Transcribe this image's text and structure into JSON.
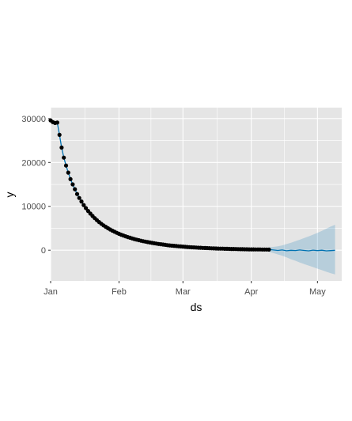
{
  "chart_data": {
    "type": "line",
    "title": "",
    "xlabel": "ds",
    "ylabel": "y",
    "grid": true,
    "legend": "none",
    "colors": {
      "panel": "#e5e5e5",
      "grid": "#ffffff",
      "points": "#000000",
      "forecast_line": "#0072b2",
      "interval": "#0072b2"
    },
    "x_axis": {
      "type": "date",
      "range": [
        "2020-01-01",
        "2020-05-12"
      ],
      "ticks": [
        {
          "date": "2020-01-01",
          "label": "Jan"
        },
        {
          "date": "2020-02-01",
          "label": "Feb"
        },
        {
          "date": "2020-03-01",
          "label": "Mar"
        },
        {
          "date": "2020-04-01",
          "label": "Apr"
        },
        {
          "date": "2020-05-01",
          "label": "May"
        }
      ]
    },
    "y_axis": {
      "range": [
        -7000,
        32500
      ],
      "ticks": [
        0,
        10000,
        20000,
        30000
      ],
      "tick_labels": [
        "0",
        "10000",
        "20000",
        "30000"
      ]
    },
    "observed": {
      "x": [
        "2020-01-01",
        "2020-01-02",
        "2020-01-03",
        "2020-01-04",
        "2020-01-05",
        "2020-01-06",
        "2020-01-07",
        "2020-01-08",
        "2020-01-09",
        "2020-01-10",
        "2020-01-11",
        "2020-01-12",
        "2020-01-13",
        "2020-01-14",
        "2020-01-15",
        "2020-01-16",
        "2020-01-17",
        "2020-01-18",
        "2020-01-19",
        "2020-01-20",
        "2020-01-21",
        "2020-01-22",
        "2020-01-23",
        "2020-01-24",
        "2020-01-25",
        "2020-01-26",
        "2020-01-27",
        "2020-01-28",
        "2020-01-29",
        "2020-01-30",
        "2020-01-31",
        "2020-02-01",
        "2020-02-02",
        "2020-02-03",
        "2020-02-04",
        "2020-02-05",
        "2020-02-06",
        "2020-02-07",
        "2020-02-08",
        "2020-02-09",
        "2020-02-10",
        "2020-02-11",
        "2020-02-12",
        "2020-02-13",
        "2020-02-14",
        "2020-02-15",
        "2020-02-16",
        "2020-02-17",
        "2020-02-18",
        "2020-02-19",
        "2020-02-20",
        "2020-02-21",
        "2020-02-22",
        "2020-02-23",
        "2020-02-24",
        "2020-02-25",
        "2020-02-26",
        "2020-02-27",
        "2020-02-28",
        "2020-02-29",
        "2020-03-01",
        "2020-03-02",
        "2020-03-03",
        "2020-03-04",
        "2020-03-05",
        "2020-03-06",
        "2020-03-07",
        "2020-03-08",
        "2020-03-09",
        "2020-03-10",
        "2020-03-11",
        "2020-03-12",
        "2020-03-13",
        "2020-03-14",
        "2020-03-15",
        "2020-03-16",
        "2020-03-17",
        "2020-03-18",
        "2020-03-19",
        "2020-03-20",
        "2020-03-21",
        "2020-03-22",
        "2020-03-23",
        "2020-03-24",
        "2020-03-25",
        "2020-03-26",
        "2020-03-27",
        "2020-03-28",
        "2020-03-29",
        "2020-03-30",
        "2020-03-31",
        "2020-04-01",
        "2020-04-02",
        "2020-04-03",
        "2020-04-04",
        "2020-04-05",
        "2020-04-06",
        "2020-04-07",
        "2020-04-08",
        "2020-04-09"
      ],
      "y": [
        29600,
        29200,
        29000,
        29100,
        26300,
        23400,
        21100,
        19300,
        17700,
        16200,
        15000,
        13900,
        12800,
        11900,
        11100,
        10300,
        9600,
        8950,
        8350,
        7800,
        7300,
        6850,
        6420,
        6030,
        5670,
        5330,
        5020,
        4730,
        4460,
        4210,
        3970,
        3750,
        3540,
        3350,
        3170,
        3000,
        2840,
        2690,
        2550,
        2420,
        2290,
        2170,
        2060,
        1960,
        1860,
        1760,
        1670,
        1590,
        1510,
        1430,
        1360,
        1290,
        1220,
        1160,
        1100,
        1050,
        1000,
        950,
        900,
        860,
        820,
        780,
        740,
        700,
        670,
        640,
        610,
        580,
        550,
        530,
        500,
        480,
        460,
        440,
        420,
        400,
        380,
        360,
        350,
        330,
        320,
        300,
        290,
        280,
        260,
        250,
        240,
        230,
        220,
        210,
        200,
        195,
        190,
        180,
        175,
        170,
        165,
        160,
        155,
        150
      ]
    },
    "forecast": {
      "x": [
        "2020-04-09",
        "2020-04-11",
        "2020-04-13",
        "2020-04-15",
        "2020-04-17",
        "2020-04-19",
        "2020-04-21",
        "2020-04-23",
        "2020-04-25",
        "2020-04-27",
        "2020-04-29",
        "2020-05-01",
        "2020-05-03",
        "2020-05-05",
        "2020-05-07",
        "2020-05-09"
      ],
      "yhat": [
        180,
        60,
        -50,
        50,
        -120,
        -20,
        -80,
        60,
        -60,
        -150,
        20,
        -100,
        -10,
        -150,
        -90,
        -20
      ],
      "yhat_lower": [
        -350,
        -650,
        -950,
        -1250,
        -1650,
        -2050,
        -2400,
        -2800,
        -3150,
        -3500,
        -3850,
        -4200,
        -4550,
        -4900,
        -5250,
        -5500
      ],
      "yhat_upper": [
        650,
        750,
        900,
        1100,
        1400,
        1700,
        2050,
        2400,
        2800,
        3150,
        3550,
        3950,
        4400,
        4900,
        5400,
        5800
      ]
    }
  }
}
